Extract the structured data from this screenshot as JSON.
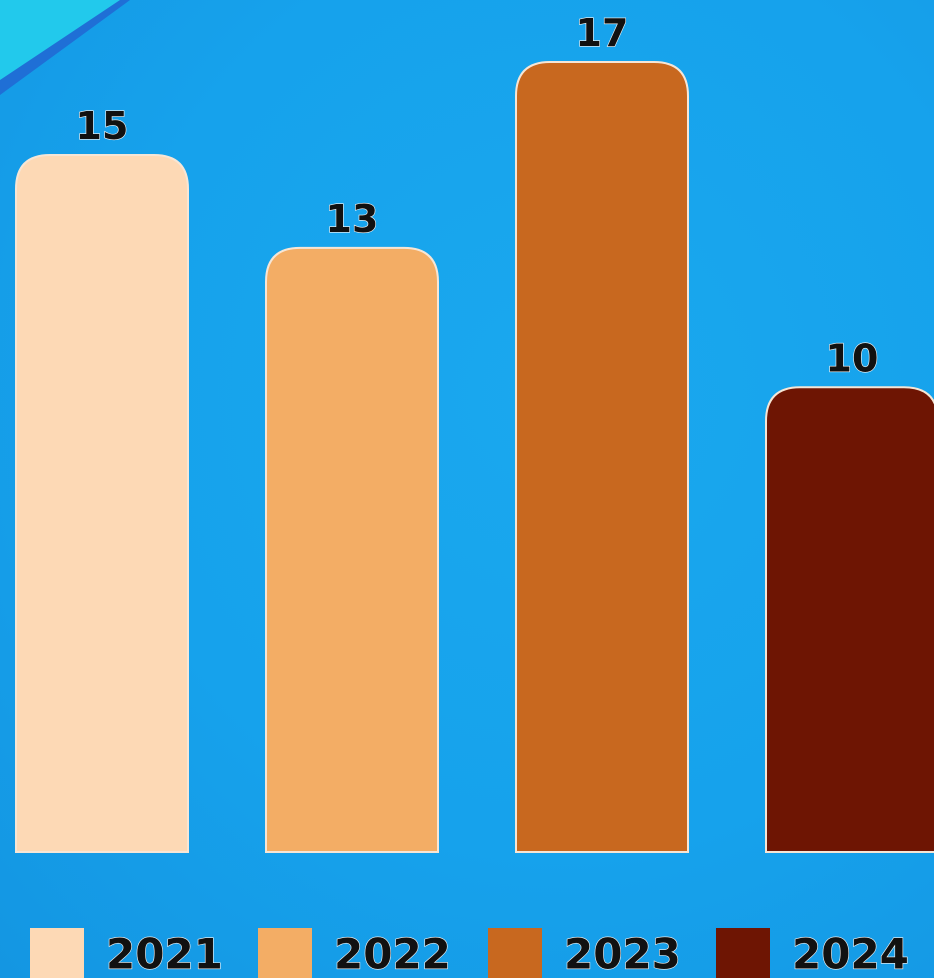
{
  "chart_data": {
    "type": "bar",
    "categories": [
      "2021",
      "2022",
      "2023",
      "2024"
    ],
    "values": [
      15,
      13,
      17,
      10
    ],
    "value_labels": [
      "15",
      "13",
      "17",
      "10"
    ],
    "title": "",
    "xlabel": "",
    "ylabel": "",
    "ylim": [
      0,
      17
    ],
    "grid": false,
    "legend_position": "bottom",
    "colors": [
      "#fdd9b5",
      "#f3ad65",
      "#c8681f",
      "#6e1503"
    ],
    "legend": [
      {
        "label": "2021",
        "color": "#fdd9b5"
      },
      {
        "label": "2022",
        "color": "#f3ad65"
      },
      {
        "label": "2023",
        "color": "#c8681f"
      },
      {
        "label": "2024",
        "color": "#6e1503"
      }
    ]
  },
  "theme": {
    "background": "#16a2ec",
    "accent": "#22d3ee"
  }
}
